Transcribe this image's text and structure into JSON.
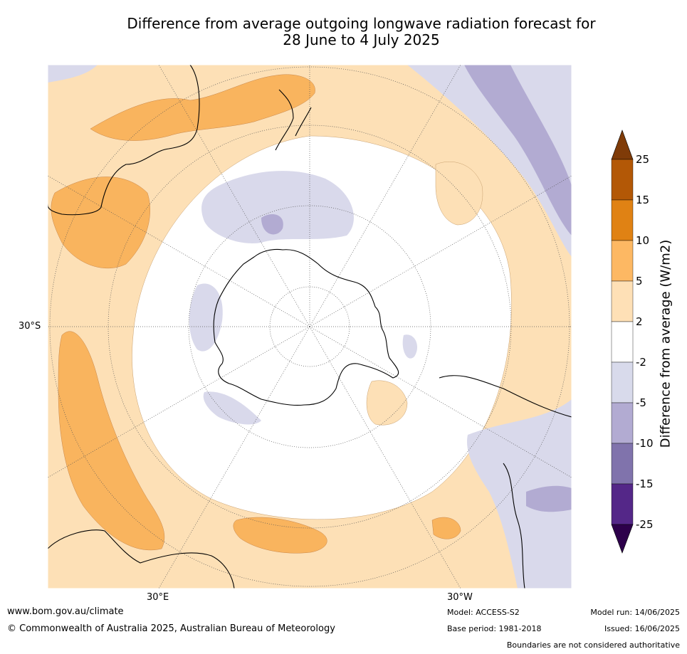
{
  "title_line1": "Difference from average outgoing longwave radiation forecast for",
  "title_line2": "28 June to 4 July 2025",
  "map": {
    "lat_label": "30°S",
    "lon_labels": [
      "30°E",
      "30°W"
    ],
    "colors": {
      "ocean_bg": "#ffffff",
      "pos_2_5": "#fde0b6",
      "pos_5_10": "#f9b45e",
      "neg_2_5": "#d9d9eb",
      "neg_5_10": "#b2abd2"
    }
  },
  "colorbar": {
    "label": "Difference from average (W/m2)",
    "ticks": [
      "25",
      "15",
      "10",
      "5",
      "2",
      "-2",
      "-5",
      "-10",
      "-15",
      "-25"
    ],
    "colors": [
      "#7f3b08",
      "#b35806",
      "#e08214",
      "#fdb863",
      "#fee0b6",
      "#ffffff",
      "#d8daeb",
      "#b2abd2",
      "#8073ac",
      "#542788",
      "#2d004b"
    ]
  },
  "footer": {
    "website": "www.bom.gov.au/climate",
    "copyright": "© Commonwealth of Australia 2025, Australian Bureau of Meteorology",
    "model": "Model: ACCESS-S2",
    "base_period": "Base period: 1981-2018",
    "model_run": "Model run: 14/06/2025",
    "issued": "Issued: 16/06/2025",
    "disclaimer": "Boundaries are not considered authoritative"
  }
}
